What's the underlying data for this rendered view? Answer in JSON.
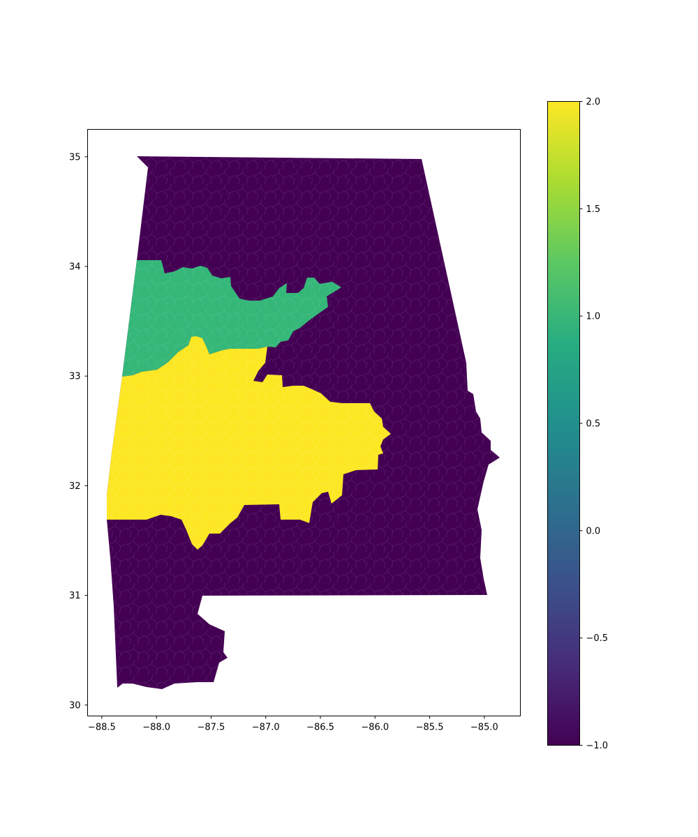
{
  "map": {
    "x_ticks": [
      "−88.5",
      "−88.0",
      "−87.5",
      "−87.0",
      "−86.5",
      "−86.0",
      "−85.5",
      "−85.0"
    ],
    "y_ticks": [
      "35",
      "34",
      "33",
      "32",
      "31",
      "30"
    ],
    "x_range": [
      -88.63,
      -84.67
    ],
    "y_range": [
      29.9,
      35.25
    ],
    "regions": [
      {
        "value": -1.0,
        "color": "#440154"
      },
      {
        "value": 1.0,
        "color": "#35b779"
      },
      {
        "value": 2.0,
        "color": "#fde725"
      }
    ]
  },
  "colorbar": {
    "ticks": [
      "2.0",
      "1.5",
      "1.0",
      "0.5",
      "0.0",
      "−0.5",
      "−1.0"
    ],
    "min": -1.0,
    "max": 2.0,
    "gradient": [
      "#440154",
      "#472c7a",
      "#3b518b",
      "#2c718e",
      "#21908d",
      "#27ad81",
      "#5cc863",
      "#aadc32",
      "#fde725"
    ]
  }
}
